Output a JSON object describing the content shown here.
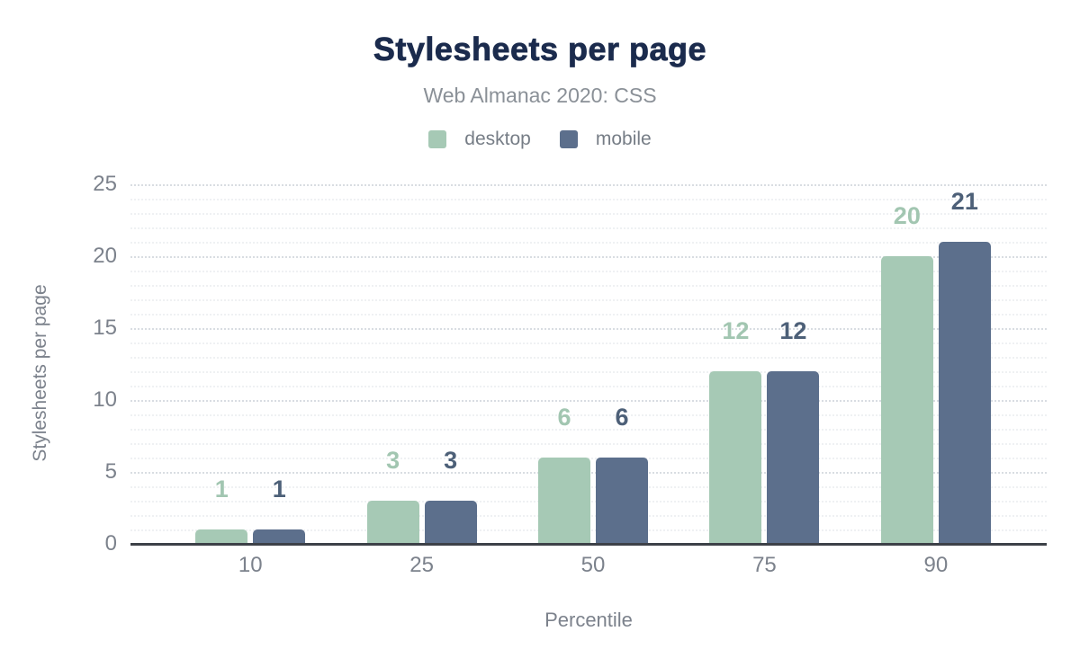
{
  "chart_data": {
    "type": "bar",
    "title": "Stylesheets per page",
    "subtitle": "Web Almanac 2020: CSS",
    "xlabel": "Percentile",
    "ylabel": "Stylesheets per page",
    "categories": [
      "10",
      "25",
      "50",
      "75",
      "90"
    ],
    "series": [
      {
        "name": "desktop",
        "color": "#a6c9b5",
        "label_color": "#a2c6b1",
        "values": [
          1,
          3,
          6,
          12,
          20
        ]
      },
      {
        "name": "mobile",
        "color": "#5c6f8c",
        "label_color": "#4d6078",
        "values": [
          1,
          3,
          6,
          12,
          21
        ]
      }
    ],
    "ylim": [
      0,
      25
    ],
    "yticks": [
      0,
      5,
      10,
      15,
      20,
      25
    ],
    "minor_tick_step": 1,
    "legend_position": "top",
    "grid": {
      "major": "dotted every 5",
      "minor": "dotted every 1"
    },
    "colors": {
      "title": "#1b2b4d",
      "subtitle": "#8a9097",
      "legend_text": "#767d86",
      "tick_text": "#7c828c",
      "axis_title_text": "#7c828c",
      "axis_line": "#3d4148",
      "major_grid": "#d9dde2",
      "minor_grid": "#eff1f3",
      "background": "#ffffff"
    }
  }
}
